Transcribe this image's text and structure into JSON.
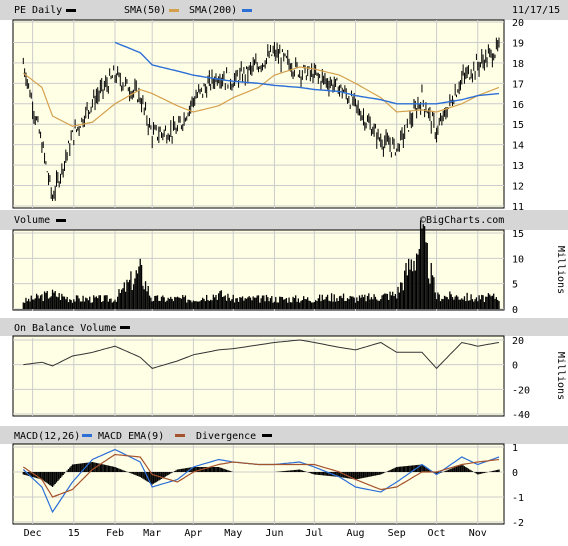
{
  "header": {
    "ticker_label": "PE Daily",
    "sma50_label": "SMA(50)",
    "sma200_label": "SMA(200)",
    "date": "11/17/15",
    "watermark": "©BigCharts.com"
  },
  "colors": {
    "price": "#000000",
    "sma50": "#d4a04c",
    "sma200": "#2c6fd6",
    "macd": "#2c6fd6",
    "macd_ema": "#a5532d",
    "background": "#ffffe6",
    "band": "#d6d6d6"
  },
  "x_labels": [
    "Dec",
    "15",
    "Feb",
    "Mar",
    "Apr",
    "May",
    "Jun",
    "Jul",
    "Aug",
    "Sep",
    "Oct",
    "Nov"
  ],
  "chart_data": [
    {
      "type": "line",
      "panel": "price",
      "title": "PE Daily",
      "ylim": [
        11,
        20
      ],
      "yticks": [
        11,
        12,
        13,
        14,
        15,
        16,
        17,
        18,
        19,
        20
      ],
      "x": [
        "2014-11-24",
        "2014-12-08",
        "2014-12-16",
        "2014-12-31",
        "2015-01-15",
        "2015-02-01",
        "2015-02-20",
        "2015-03-01",
        "2015-03-20",
        "2015-04-01",
        "2015-04-20",
        "2015-05-01",
        "2015-05-20",
        "2015-06-01",
        "2015-06-20",
        "2015-07-01",
        "2015-07-20",
        "2015-08-01",
        "2015-08-20",
        "2015-09-01",
        "2015-09-20",
        "2015-10-01",
        "2015-10-20",
        "2015-11-01",
        "2015-11-17"
      ],
      "series": [
        {
          "name": "PE Daily",
          "values": [
            18.0,
            14.0,
            11.4,
            14.4,
            16.1,
            17.4,
            16.3,
            14.5,
            14.7,
            16.2,
            17.4,
            17.1,
            17.9,
            18.5,
            17.6,
            17.4,
            16.8,
            15.9,
            14.2,
            13.8,
            16.3,
            14.6,
            17.2,
            17.9,
            18.7
          ]
        },
        {
          "name": "SMA(50)",
          "values": [
            17.5,
            16.8,
            15.4,
            14.9,
            15.1,
            16.0,
            16.7,
            16.5,
            15.9,
            15.6,
            15.9,
            16.3,
            16.8,
            17.4,
            17.8,
            17.7,
            17.4,
            17.0,
            16.3,
            15.6,
            15.7,
            15.6,
            16.0,
            16.4,
            16.8
          ]
        },
        {
          "name": "SMA(200)",
          "values": [
            null,
            null,
            null,
            null,
            null,
            19.0,
            18.5,
            17.9,
            17.6,
            17.4,
            17.2,
            17.1,
            17.0,
            16.9,
            16.8,
            16.7,
            16.6,
            16.4,
            16.2,
            16.0,
            16.0,
            16.0,
            16.2,
            16.4,
            16.5
          ]
        }
      ]
    },
    {
      "type": "bar",
      "panel": "volume",
      "title": "Volume",
      "ylabel": "Millions",
      "ylim": [
        0,
        15
      ],
      "yticks": [
        0,
        5,
        10,
        15
      ],
      "x": [
        "2014-11-24",
        "2014-12-08",
        "2014-12-16",
        "2014-12-31",
        "2015-01-15",
        "2015-02-01",
        "2015-02-20",
        "2015-03-01",
        "2015-03-20",
        "2015-04-01",
        "2015-04-20",
        "2015-05-01",
        "2015-05-20",
        "2015-06-01",
        "2015-06-20",
        "2015-07-01",
        "2015-07-20",
        "2015-08-01",
        "2015-08-20",
        "2015-09-01",
        "2015-09-20",
        "2015-10-01",
        "2015-10-20",
        "2015-11-01",
        "2015-11-17"
      ],
      "values": [
        1.5,
        2.5,
        3.0,
        2.0,
        2.0,
        2.0,
        7.5,
        2.0,
        2.0,
        2.0,
        3.0,
        2.0,
        2.0,
        2.0,
        2.0,
        2.0,
        2.5,
        2.0,
        2.5,
        3.0,
        14.0,
        2.5,
        2.5,
        2.0,
        2.5
      ]
    },
    {
      "type": "line",
      "panel": "obv",
      "title": "On Balance Volume",
      "ylabel": "Millions",
      "ylim": [
        -40,
        20
      ],
      "yticks": [
        -40,
        -20,
        0,
        20
      ],
      "x": [
        "2014-11-24",
        "2014-12-08",
        "2014-12-16",
        "2014-12-31",
        "2015-01-15",
        "2015-02-01",
        "2015-02-20",
        "2015-03-01",
        "2015-03-20",
        "2015-04-01",
        "2015-04-20",
        "2015-05-01",
        "2015-05-20",
        "2015-06-01",
        "2015-06-20",
        "2015-07-01",
        "2015-07-20",
        "2015-08-01",
        "2015-08-20",
        "2015-09-01",
        "2015-09-20",
        "2015-10-01",
        "2015-10-20",
        "2015-11-01",
        "2015-11-17"
      ],
      "series": [
        {
          "name": "On Balance Volume",
          "values": [
            0,
            2,
            -1,
            7,
            10,
            15,
            6,
            -3,
            3,
            8,
            12,
            13,
            16,
            18,
            20,
            18,
            14,
            12,
            18,
            10,
            10,
            -3,
            18,
            15,
            18
          ]
        }
      ]
    },
    {
      "type": "line",
      "panel": "macd",
      "title": "MACD(12,26)",
      "ylim": [
        -2,
        1
      ],
      "yticks": [
        -2,
        -1,
        0,
        1
      ],
      "x": [
        "2014-11-24",
        "2014-12-08",
        "2014-12-16",
        "2014-12-31",
        "2015-01-15",
        "2015-02-01",
        "2015-02-20",
        "2015-03-01",
        "2015-03-20",
        "2015-04-01",
        "2015-04-20",
        "2015-05-01",
        "2015-05-20",
        "2015-06-01",
        "2015-06-20",
        "2015-07-01",
        "2015-07-20",
        "2015-08-01",
        "2015-08-20",
        "2015-09-01",
        "2015-09-20",
        "2015-10-01",
        "2015-10-20",
        "2015-11-01",
        "2015-11-17"
      ],
      "series": [
        {
          "name": "MACD(12,26)",
          "values": [
            0.1,
            -0.6,
            -1.6,
            -0.4,
            0.5,
            0.9,
            0.4,
            -0.6,
            -0.3,
            0.2,
            0.5,
            0.4,
            0.3,
            0.3,
            0.4,
            0.2,
            -0.2,
            -0.6,
            -0.8,
            -0.4,
            0.3,
            -0.1,
            0.6,
            0.3,
            0.6
          ]
        },
        {
          "name": "MACD EMA(9)",
          "values": [
            0.2,
            -0.3,
            -1.0,
            -0.7,
            0.1,
            0.7,
            0.6,
            -0.1,
            -0.4,
            0.0,
            0.3,
            0.4,
            0.3,
            0.3,
            0.3,
            0.3,
            0.0,
            -0.3,
            -0.7,
            -0.6,
            0.0,
            0.0,
            0.3,
            0.4,
            0.5
          ]
        },
        {
          "name": "Divergence",
          "values": [
            -0.1,
            -0.3,
            -0.6,
            0.3,
            0.4,
            0.2,
            -0.2,
            -0.5,
            0.1,
            0.2,
            0.2,
            0.0,
            0.0,
            0.0,
            0.1,
            -0.1,
            -0.2,
            -0.3,
            -0.1,
            0.2,
            0.3,
            -0.1,
            0.3,
            -0.1,
            0.1
          ]
        }
      ]
    }
  ]
}
